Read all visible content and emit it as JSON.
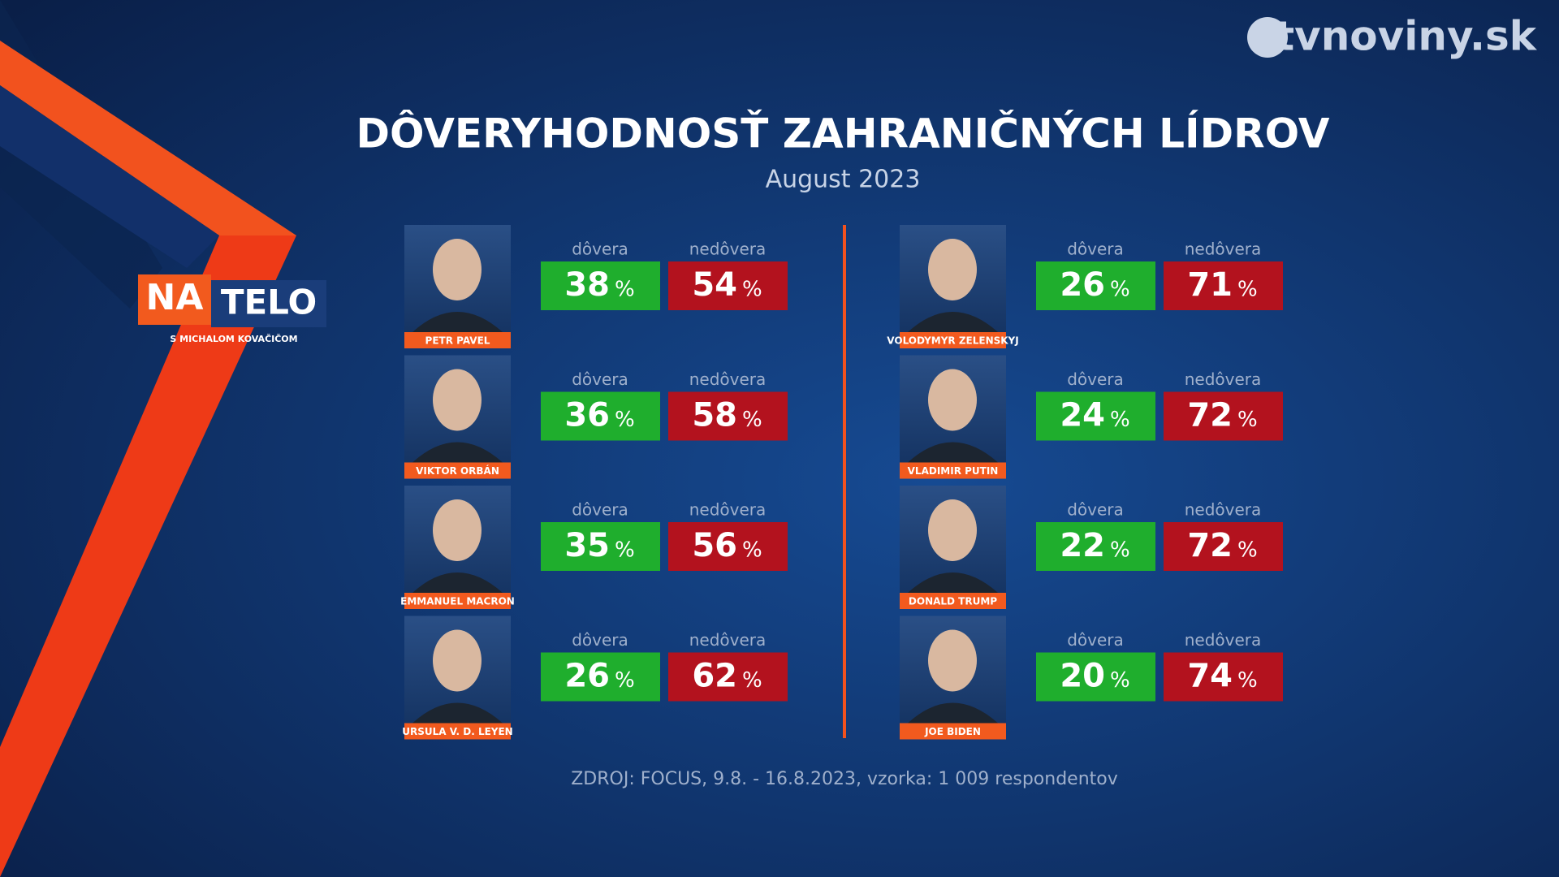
{
  "logo": {
    "brand": "tvnoviny.sk"
  },
  "show": {
    "name_a": "NA",
    "name_b": "TELO",
    "host": "S MICHALOM KOVAČIČOM"
  },
  "title": "DÔVERYHODNOSŤ ZAHRANIČNÝCH LÍDROV",
  "subtitle": "August 2023",
  "labels": {
    "trust": "dôvera",
    "distrust": "nedôvera",
    "percent": "%"
  },
  "columns": [
    [
      {
        "name": "PETR PAVEL",
        "trust": 38,
        "distrust": 54
      },
      {
        "name": "VIKTOR ORBÁN",
        "trust": 36,
        "distrust": 58
      },
      {
        "name": "EMMANUEL MACRON",
        "trust": 35,
        "distrust": 56
      },
      {
        "name": "URSULA V. D. LEYEN",
        "trust": 26,
        "distrust": 62
      }
    ],
    [
      {
        "name": "VOLODYMYR ZELENSKYJ",
        "trust": 26,
        "distrust": 71
      },
      {
        "name": "VLADIMIR PUTIN",
        "trust": 24,
        "distrust": 72
      },
      {
        "name": "DONALD TRUMP",
        "trust": 22,
        "distrust": 72
      },
      {
        "name": "JOE BIDEN",
        "trust": 20,
        "distrust": 74
      }
    ]
  ],
  "source": "ZDROJ: FOCUS, 9.8. - 16.8.2023, vzorka: 1 009 respondentov"
}
